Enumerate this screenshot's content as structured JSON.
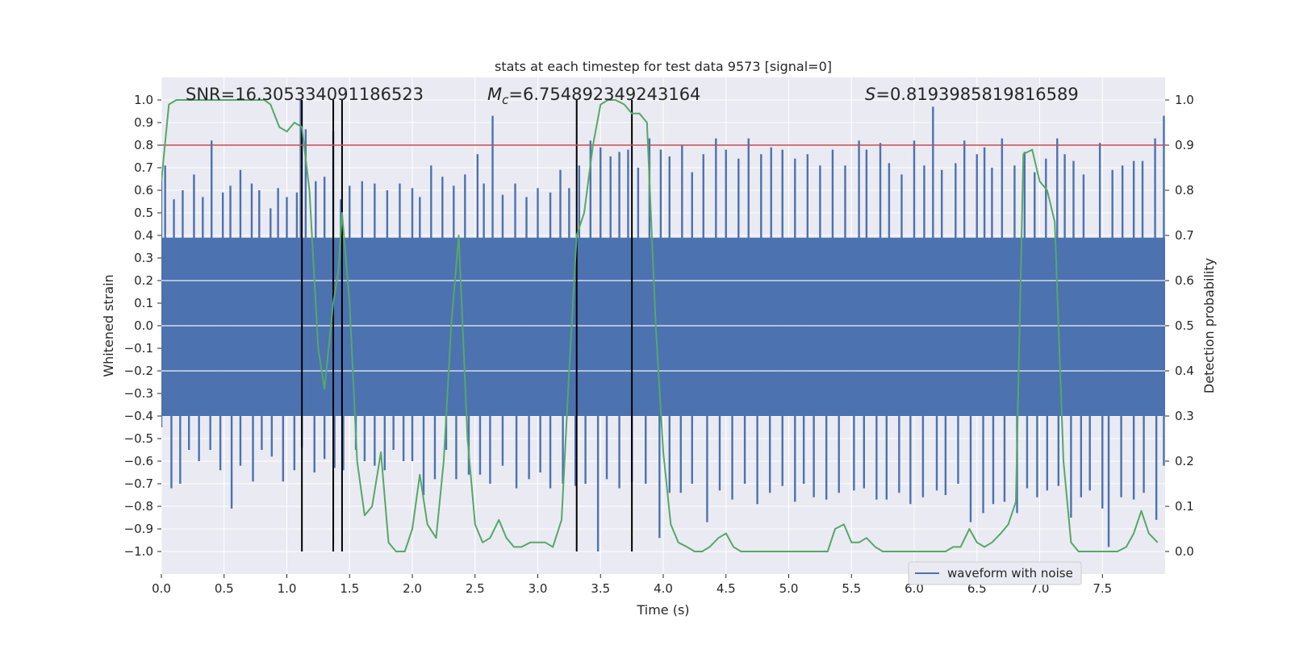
{
  "chart_data": {
    "type": "line",
    "title": "stats at each timestep for test data 9573 [signal=0]",
    "xlabel": "Time (s)",
    "ylabel": "Whitened strain",
    "y2label": "Detection probability",
    "xlim": [
      0,
      8
    ],
    "ylim": [
      -1.1,
      1.1
    ],
    "y2lim": [
      -0.05,
      1.05
    ],
    "xticks": [
      0.0,
      0.5,
      1.0,
      1.5,
      2.0,
      2.5,
      3.0,
      3.5,
      4.0,
      4.5,
      5.0,
      5.5,
      6.0,
      6.5,
      7.0,
      7.5
    ],
    "yticks": [
      -1.0,
      -0.9,
      -0.8,
      -0.7,
      -0.6,
      -0.5,
      -0.4,
      -0.3,
      -0.2,
      -0.1,
      0.0,
      0.1,
      0.2,
      0.3,
      0.4,
      0.5,
      0.6,
      0.7,
      0.8,
      0.9,
      1.0
    ],
    "y2ticks": [
      0.0,
      0.1,
      0.2,
      0.3,
      0.4,
      0.5,
      0.6,
      0.7,
      0.8,
      0.9,
      1.0
    ],
    "annotations": {
      "snr": "SNR=16.305334091186523",
      "mc_symbol": "M",
      "mc_sub": "c",
      "mc_value": "=6.754892349243164",
      "s_symbol": "S",
      "s_value": "=0.8193985819816589"
    },
    "threshold_y": 0.8,
    "threshold_color": "#c44e52",
    "vertical_lines_x": [
      1.12,
      1.37,
      1.44,
      3.31,
      3.75
    ],
    "series": [
      {
        "name": "waveform with noise",
        "color": "#4c72b0",
        "envelope_upper": 0.39,
        "envelope_lower": -0.4,
        "band_x": [
          0,
          8
        ],
        "peaks_up": [
          [
            0.0,
            0.65
          ],
          [
            0.03,
            0.71
          ],
          [
            0.1,
            0.56
          ],
          [
            0.17,
            0.6
          ],
          [
            0.26,
            0.67
          ],
          [
            0.33,
            0.57
          ],
          [
            0.4,
            0.82
          ],
          [
            0.49,
            0.59
          ],
          [
            0.55,
            0.62
          ],
          [
            0.63,
            0.69
          ],
          [
            0.72,
            0.63
          ],
          [
            0.78,
            0.6
          ],
          [
            0.87,
            0.52
          ],
          [
            0.93,
            0.61
          ],
          [
            1.0,
            0.57
          ],
          [
            1.08,
            0.59
          ],
          [
            1.11,
            1.0
          ],
          [
            1.15,
            0.87
          ],
          [
            1.23,
            0.64
          ],
          [
            1.3,
            0.66
          ],
          [
            1.37,
            0.86
          ],
          [
            1.43,
            0.56
          ],
          [
            1.5,
            0.62
          ],
          [
            1.6,
            0.64
          ],
          [
            1.7,
            0.63
          ],
          [
            1.8,
            0.6
          ],
          [
            1.9,
            0.63
          ],
          [
            2.0,
            0.61
          ],
          [
            2.06,
            0.57
          ],
          [
            2.15,
            0.71
          ],
          [
            2.24,
            0.66
          ],
          [
            2.33,
            0.62
          ],
          [
            2.42,
            0.67
          ],
          [
            2.52,
            0.76
          ],
          [
            2.57,
            0.63
          ],
          [
            2.64,
            0.93
          ],
          [
            2.72,
            0.58
          ],
          [
            2.82,
            0.63
          ],
          [
            2.91,
            0.57
          ],
          [
            3.0,
            0.61
          ],
          [
            3.1,
            0.59
          ],
          [
            3.18,
            0.69
          ],
          [
            3.25,
            0.61
          ],
          [
            3.33,
            0.71
          ],
          [
            3.42,
            0.82
          ],
          [
            3.5,
            0.79
          ],
          [
            3.58,
            0.75
          ],
          [
            3.65,
            0.77
          ],
          [
            3.72,
            0.78
          ],
          [
            3.8,
            0.7
          ],
          [
            3.89,
            0.83
          ],
          [
            3.98,
            0.78
          ],
          [
            4.05,
            0.75
          ],
          [
            4.15,
            0.8
          ],
          [
            4.23,
            0.68
          ],
          [
            4.32,
            0.76
          ],
          [
            4.42,
            0.83
          ],
          [
            4.5,
            0.78
          ],
          [
            4.6,
            0.74
          ],
          [
            4.68,
            0.83
          ],
          [
            4.78,
            0.76
          ],
          [
            4.86,
            0.79
          ],
          [
            4.95,
            0.78
          ],
          [
            5.05,
            0.74
          ],
          [
            5.15,
            0.76
          ],
          [
            5.25,
            0.71
          ],
          [
            5.35,
            0.78
          ],
          [
            5.45,
            0.71
          ],
          [
            5.56,
            0.82
          ],
          [
            5.62,
            0.78
          ],
          [
            5.73,
            0.81
          ],
          [
            5.8,
            0.72
          ],
          [
            5.9,
            0.67
          ],
          [
            6.0,
            0.82
          ],
          [
            6.08,
            0.71
          ],
          [
            6.15,
            0.97
          ],
          [
            6.22,
            0.69
          ],
          [
            6.33,
            0.72
          ],
          [
            6.4,
            0.82
          ],
          [
            6.5,
            0.76
          ],
          [
            6.56,
            0.79
          ],
          [
            6.62,
            0.7
          ],
          [
            6.7,
            0.83
          ],
          [
            6.8,
            0.71
          ],
          [
            6.88,
            0.77
          ],
          [
            6.96,
            0.68
          ],
          [
            7.05,
            0.74
          ],
          [
            7.14,
            0.83
          ],
          [
            7.2,
            0.76
          ],
          [
            7.27,
            0.73
          ],
          [
            7.35,
            0.67
          ],
          [
            7.48,
            0.81
          ],
          [
            7.58,
            0.69
          ],
          [
            7.66,
            0.71
          ],
          [
            7.75,
            0.73
          ],
          [
            7.82,
            0.73
          ],
          [
            7.92,
            0.83
          ],
          [
            7.99,
            0.93
          ]
        ],
        "peaks_down": [
          [
            0.0,
            -0.45
          ],
          [
            0.08,
            -0.72
          ],
          [
            0.15,
            -0.7
          ],
          [
            0.22,
            -0.55
          ],
          [
            0.3,
            -0.6
          ],
          [
            0.39,
            -0.55
          ],
          [
            0.47,
            -0.64
          ],
          [
            0.56,
            -0.81
          ],
          [
            0.63,
            -0.62
          ],
          [
            0.73,
            -0.69
          ],
          [
            0.8,
            -0.55
          ],
          [
            0.88,
            -0.58
          ],
          [
            0.97,
            -0.69
          ],
          [
            1.06,
            -0.64
          ],
          [
            1.12,
            -0.54
          ],
          [
            1.22,
            -0.65
          ],
          [
            1.3,
            -0.59
          ],
          [
            1.38,
            -0.63
          ],
          [
            1.45,
            -0.64
          ],
          [
            1.55,
            -0.55
          ],
          [
            1.62,
            -0.6
          ],
          [
            1.7,
            -0.62
          ],
          [
            1.78,
            -0.64
          ],
          [
            1.85,
            -0.55
          ],
          [
            1.93,
            -0.6
          ],
          [
            2.0,
            -0.6
          ],
          [
            2.09,
            -0.75
          ],
          [
            2.18,
            -0.68
          ],
          [
            2.27,
            -0.55
          ],
          [
            2.35,
            -0.68
          ],
          [
            2.45,
            -0.66
          ],
          [
            2.54,
            -0.66
          ],
          [
            2.62,
            -0.7
          ],
          [
            2.72,
            -0.62
          ],
          [
            2.83,
            -0.72
          ],
          [
            2.93,
            -0.68
          ],
          [
            3.02,
            -0.65
          ],
          [
            3.1,
            -0.72
          ],
          [
            3.2,
            -0.7
          ],
          [
            3.3,
            -0.71
          ],
          [
            3.38,
            -0.7
          ],
          [
            3.48,
            -1.0
          ],
          [
            3.55,
            -0.68
          ],
          [
            3.65,
            -0.72
          ],
          [
            3.75,
            -0.69
          ],
          [
            3.86,
            -0.7
          ],
          [
            3.97,
            -0.94
          ],
          [
            4.05,
            -0.74
          ],
          [
            4.14,
            -0.74
          ],
          [
            4.23,
            -0.7
          ],
          [
            4.35,
            -0.87
          ],
          [
            4.45,
            -0.73
          ],
          [
            4.55,
            -0.77
          ],
          [
            4.65,
            -0.7
          ],
          [
            4.75,
            -0.79
          ],
          [
            4.85,
            -0.74
          ],
          [
            4.95,
            -0.71
          ],
          [
            5.05,
            -0.78
          ],
          [
            5.12,
            -0.7
          ],
          [
            5.2,
            -0.76
          ],
          [
            5.3,
            -0.77
          ],
          [
            5.4,
            -0.74
          ],
          [
            5.52,
            -0.73
          ],
          [
            5.6,
            -0.72
          ],
          [
            5.7,
            -0.77
          ],
          [
            5.78,
            -0.77
          ],
          [
            5.88,
            -0.74
          ],
          [
            5.97,
            -0.79
          ],
          [
            6.07,
            -0.76
          ],
          [
            6.18,
            -0.73
          ],
          [
            6.25,
            -0.75
          ],
          [
            6.35,
            -0.7
          ],
          [
            6.45,
            -0.87
          ],
          [
            6.55,
            -0.83
          ],
          [
            6.63,
            -0.79
          ],
          [
            6.72,
            -0.78
          ],
          [
            6.82,
            -0.83
          ],
          [
            6.9,
            -0.72
          ],
          [
            6.98,
            -0.76
          ],
          [
            7.06,
            -0.73
          ],
          [
            7.15,
            -0.71
          ],
          [
            7.25,
            -0.85
          ],
          [
            7.33,
            -0.76
          ],
          [
            7.4,
            -0.73
          ],
          [
            7.5,
            -0.81
          ],
          [
            7.55,
            -0.98
          ],
          [
            7.65,
            -0.76
          ],
          [
            7.75,
            -0.77
          ],
          [
            7.83,
            -0.74
          ],
          [
            7.93,
            -0.86
          ],
          [
            7.99,
            -0.62
          ]
        ]
      },
      {
        "name": "detection probability",
        "color": "#55a868",
        "axis": "right",
        "x": [
          0.0,
          0.06,
          0.12,
          0.25,
          0.5,
          0.75,
          0.82,
          0.87,
          0.94,
          1.0,
          1.06,
          1.12,
          1.18,
          1.25,
          1.3,
          1.37,
          1.41,
          1.44,
          1.5,
          1.56,
          1.62,
          1.68,
          1.75,
          1.81,
          1.87,
          1.94,
          2.0,
          2.06,
          2.12,
          2.19,
          2.25,
          2.31,
          2.37,
          2.44,
          2.5,
          2.56,
          2.62,
          2.69,
          2.75,
          2.81,
          2.87,
          2.94,
          3.0,
          3.06,
          3.12,
          3.19,
          3.25,
          3.31,
          3.37,
          3.44,
          3.5,
          3.56,
          3.62,
          3.69,
          3.75,
          3.81,
          3.87,
          3.94,
          4.0,
          4.06,
          4.12,
          4.19,
          4.25,
          4.31,
          4.37,
          4.44,
          4.5,
          4.56,
          4.62,
          4.69,
          4.75,
          4.81,
          4.87,
          5.0,
          5.12,
          5.25,
          5.31,
          5.37,
          5.44,
          5.5,
          5.56,
          5.62,
          5.69,
          5.75,
          5.81,
          5.87,
          6.0,
          6.12,
          6.25,
          6.31,
          6.37,
          6.44,
          6.5,
          6.56,
          6.62,
          6.69,
          6.75,
          6.81,
          6.87,
          6.94,
          7.0,
          7.06,
          7.12,
          7.19,
          7.25,
          7.31,
          7.37,
          7.44,
          7.5,
          7.56,
          7.62,
          7.69,
          7.75,
          7.81,
          7.87,
          7.94
        ],
        "y": [
          0.82,
          0.99,
          1.0,
          1.0,
          1.0,
          1.0,
          1.0,
          0.99,
          0.94,
          0.93,
          0.95,
          0.94,
          0.8,
          0.45,
          0.36,
          0.55,
          0.62,
          0.75,
          0.55,
          0.2,
          0.08,
          0.1,
          0.22,
          0.02,
          0.0,
          0.0,
          0.05,
          0.17,
          0.06,
          0.03,
          0.2,
          0.5,
          0.7,
          0.25,
          0.06,
          0.02,
          0.03,
          0.07,
          0.03,
          0.01,
          0.01,
          0.02,
          0.02,
          0.02,
          0.01,
          0.07,
          0.4,
          0.7,
          0.75,
          0.9,
          0.99,
          1.0,
          1.0,
          0.99,
          0.97,
          0.97,
          0.95,
          0.5,
          0.22,
          0.06,
          0.02,
          0.01,
          0.0,
          0.0,
          0.01,
          0.03,
          0.04,
          0.01,
          0.0,
          0.0,
          0.0,
          0.0,
          0.0,
          0.0,
          0.0,
          0.0,
          0.0,
          0.05,
          0.06,
          0.02,
          0.02,
          0.03,
          0.01,
          0.0,
          0.0,
          0.0,
          0.0,
          0.0,
          0.0,
          0.01,
          0.01,
          0.05,
          0.02,
          0.01,
          0.02,
          0.04,
          0.06,
          0.11,
          0.88,
          0.89,
          0.82,
          0.8,
          0.73,
          0.2,
          0.02,
          0.0,
          0.0,
          0.0,
          0.0,
          0.0,
          0.0,
          0.01,
          0.04,
          0.09,
          0.04,
          0.02
        ]
      }
    ],
    "legend": {
      "label": "waveform with noise",
      "location": "lower-right"
    }
  }
}
